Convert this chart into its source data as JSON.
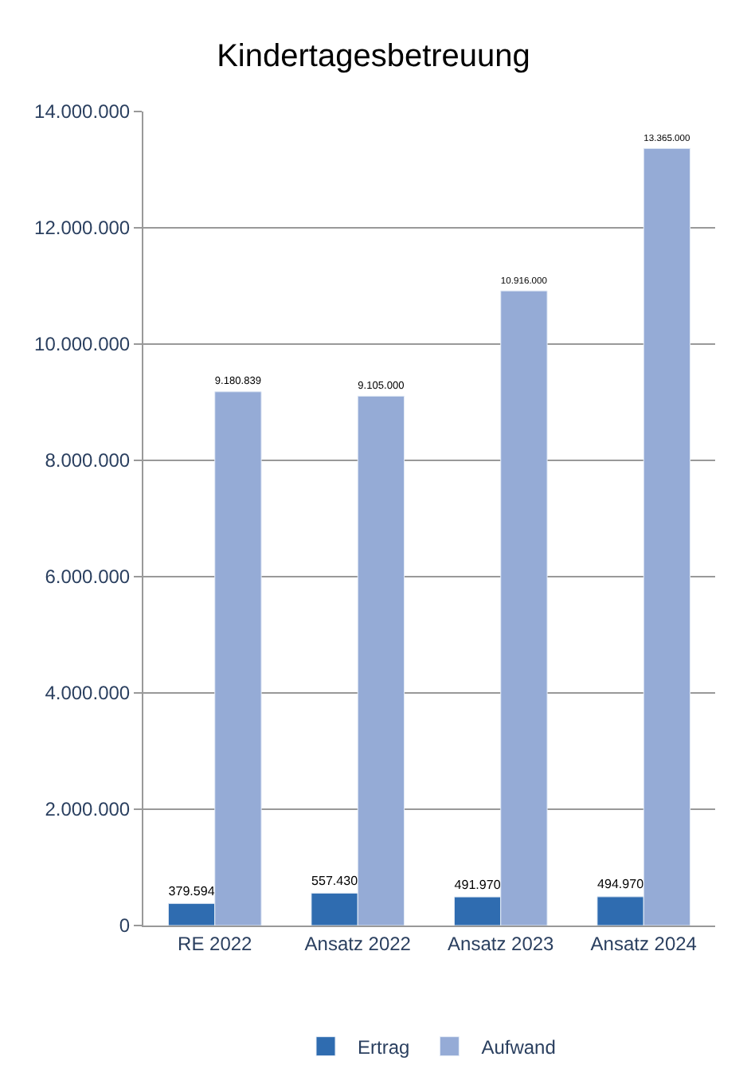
{
  "chart_data": {
    "type": "bar",
    "title": "Kindertagesbetreuung",
    "categories": [
      "RE 2022",
      "Ansatz 2022",
      "Ansatz 2023",
      "Ansatz 2024"
    ],
    "series": [
      {
        "name": "Ertrag",
        "color": "#2f6cb0",
        "values": [
          379594,
          557430,
          491970,
          494970
        ],
        "value_labels": [
          "379.594",
          "557.430",
          "491.970",
          "494.970"
        ]
      },
      {
        "name": "Aufwand",
        "color": "#95abd6",
        "values": [
          9180839,
          9105000,
          10916000,
          13365000
        ],
        "value_labels": [
          "9.180.839",
          "9.105.000",
          "10.916.000",
          "13.365.000"
        ]
      }
    ],
    "ylim": [
      0,
      14000000
    ],
    "yticks": [
      {
        "value": 0,
        "label": "0"
      },
      {
        "value": 2000000,
        "label": "2.000.000"
      },
      {
        "value": 4000000,
        "label": "4.000.000"
      },
      {
        "value": 6000000,
        "label": "6.000.000"
      },
      {
        "value": 8000000,
        "label": "8.000.000"
      },
      {
        "value": 10000000,
        "label": "10.000.000"
      },
      {
        "value": 12000000,
        "label": "12.000.000"
      },
      {
        "value": 14000000,
        "label": "14.000.000"
      }
    ],
    "grid": "y",
    "legend": "bottom"
  }
}
